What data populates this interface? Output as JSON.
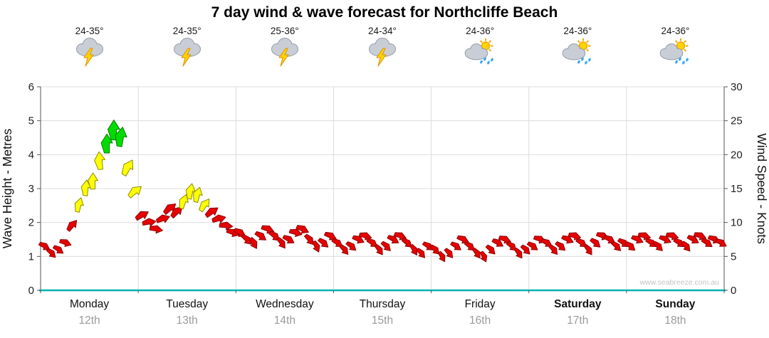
{
  "title": "7 day wind & wave forecast for Northcliffe Beach",
  "watermark": "www.seabreeze.com.au",
  "colors": {
    "red": {
      "fill": "#e60000",
      "stroke": "#8c0000"
    },
    "yellow": {
      "fill": "#ffff00",
      "stroke": "#8c8c00"
    },
    "green": {
      "fill": "#00dc00",
      "stroke": "#007a00"
    },
    "bottom_axis": "#00b2b2",
    "gridline": "#dcdcdc"
  },
  "days": [
    {
      "name": "Monday",
      "date": "12th",
      "temp": "24-35°",
      "icon": "storm-icon",
      "weekend": false
    },
    {
      "name": "Tuesday",
      "date": "13th",
      "temp": "24-35°",
      "icon": "storm-icon",
      "weekend": false
    },
    {
      "name": "Wednesday",
      "date": "14th",
      "temp": "25-36°",
      "icon": "storm-icon",
      "weekend": false
    },
    {
      "name": "Thursday",
      "date": "15th",
      "temp": "24-34°",
      "icon": "storm-icon",
      "weekend": false
    },
    {
      "name": "Friday",
      "date": "16th",
      "temp": "24-36°",
      "icon": "sun-shower-icon",
      "weekend": false
    },
    {
      "name": "Saturday",
      "date": "17th",
      "temp": "24-36°",
      "icon": "sun-shower-icon",
      "weekend": true
    },
    {
      "name": "Sunday",
      "date": "18th",
      "temp": "24-36°",
      "icon": "sun-shower-icon",
      "weekend": true
    }
  ],
  "chart_data": {
    "type": "wind-wave-arrow-series",
    "categories": [
      "Monday 12th",
      "Tuesday 13th",
      "Wednesday 14th",
      "Thursday 15th",
      "Friday 16th",
      "Saturday 17th",
      "Sunday 18th"
    ],
    "y_left": {
      "label": "Wave Height - Metres",
      "min": 0,
      "max": 6,
      "step": 1
    },
    "y_right": {
      "label": "Wind Speed - Knots",
      "min": 0,
      "max": 30,
      "step": 5
    },
    "grid": true,
    "color_thresholds": {
      "green_min": 4.0,
      "yellow_min": 2.5
    },
    "points_format": [
      "wave_height_m",
      "arrow_direction_deg_clockwise_from_up"
    ],
    "points_per_day": 14,
    "points": [
      [
        1.3,
        120
      ],
      [
        1.1,
        135
      ],
      [
        1.2,
        125
      ],
      [
        1.4,
        110
      ],
      [
        1.9,
        40
      ],
      [
        2.5,
        15
      ],
      [
        3.0,
        5
      ],
      [
        3.2,
        0
      ],
      [
        3.8,
        -5
      ],
      [
        4.3,
        0
      ],
      [
        4.7,
        0
      ],
      [
        4.5,
        10
      ],
      [
        3.6,
        30
      ],
      [
        2.9,
        50
      ],
      [
        2.2,
        60
      ],
      [
        2.0,
        80
      ],
      [
        1.8,
        100
      ],
      [
        2.1,
        70
      ],
      [
        2.4,
        50
      ],
      [
        2.3,
        45
      ],
      [
        2.6,
        20
      ],
      [
        2.9,
        10
      ],
      [
        2.8,
        15
      ],
      [
        2.5,
        35
      ],
      [
        2.3,
        55
      ],
      [
        2.1,
        75
      ],
      [
        1.9,
        95
      ],
      [
        1.7,
        110
      ],
      [
        1.7,
        120
      ],
      [
        1.5,
        135
      ],
      [
        1.4,
        150
      ],
      [
        1.6,
        125
      ],
      [
        1.8,
        110
      ],
      [
        1.6,
        130
      ],
      [
        1.4,
        145
      ],
      [
        1.5,
        120
      ],
      [
        1.7,
        105
      ],
      [
        1.8,
        115
      ],
      [
        1.5,
        140
      ],
      [
        1.3,
        155
      ],
      [
        1.4,
        130
      ],
      [
        1.6,
        115
      ],
      [
        1.4,
        125
      ],
      [
        1.2,
        140
      ],
      [
        1.3,
        130
      ],
      [
        1.5,
        115
      ],
      [
        1.6,
        105
      ],
      [
        1.4,
        125
      ],
      [
        1.2,
        145
      ],
      [
        1.3,
        135
      ],
      [
        1.5,
        120
      ],
      [
        1.6,
        110
      ],
      [
        1.4,
        130
      ],
      [
        1.2,
        150
      ],
      [
        1.1,
        140
      ],
      [
        1.3,
        125
      ],
      [
        1.2,
        135
      ],
      [
        1.0,
        150
      ],
      [
        1.1,
        140
      ],
      [
        1.3,
        125
      ],
      [
        1.5,
        115
      ],
      [
        1.3,
        130
      ],
      [
        1.1,
        145
      ],
      [
        1.0,
        155
      ],
      [
        1.2,
        135
      ],
      [
        1.4,
        120
      ],
      [
        1.5,
        110
      ],
      [
        1.3,
        130
      ],
      [
        1.1,
        145
      ],
      [
        1.2,
        135
      ],
      [
        1.3,
        125
      ],
      [
        1.5,
        110
      ],
      [
        1.4,
        120
      ],
      [
        1.2,
        140
      ],
      [
        1.3,
        130
      ],
      [
        1.5,
        115
      ],
      [
        1.6,
        105
      ],
      [
        1.4,
        125
      ],
      [
        1.2,
        145
      ],
      [
        1.4,
        130
      ],
      [
        1.6,
        110
      ],
      [
        1.5,
        120
      ],
      [
        1.3,
        135
      ],
      [
        1.4,
        125
      ],
      [
        1.3,
        130
      ],
      [
        1.5,
        115
      ],
      [
        1.6,
        105
      ],
      [
        1.4,
        125
      ],
      [
        1.3,
        135
      ],
      [
        1.5,
        115
      ],
      [
        1.6,
        105
      ],
      [
        1.4,
        125
      ],
      [
        1.3,
        140
      ],
      [
        1.5,
        120
      ],
      [
        1.6,
        110
      ],
      [
        1.4,
        125
      ],
      [
        1.5,
        115
      ],
      [
        1.4,
        120
      ]
    ]
  }
}
